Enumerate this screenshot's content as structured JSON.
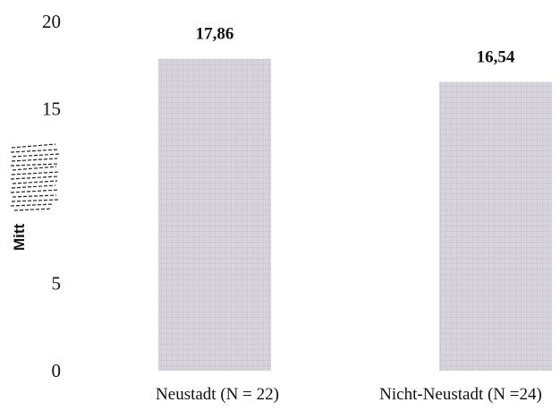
{
  "chart_data": {
    "type": "bar",
    "title": "",
    "xlabel": "",
    "ylabel": "Mitt",
    "categories": [
      "Neustadt (N = 22)",
      "Nicht-Neustadt (N =24)"
    ],
    "values": [
      17.86,
      16.54
    ],
    "data_labels": [
      "17,86",
      "16,54"
    ],
    "ylim": [
      0,
      20
    ],
    "yticks": [
      0,
      5,
      15,
      20
    ],
    "ytick_labels": [
      "0",
      "5",
      "15",
      "20"
    ],
    "grid": false,
    "legend": "none",
    "colors": {
      "bar_fill": "#d7d3dc",
      "bar_pattern": "#c6c1cb",
      "text": "#111111"
    }
  }
}
